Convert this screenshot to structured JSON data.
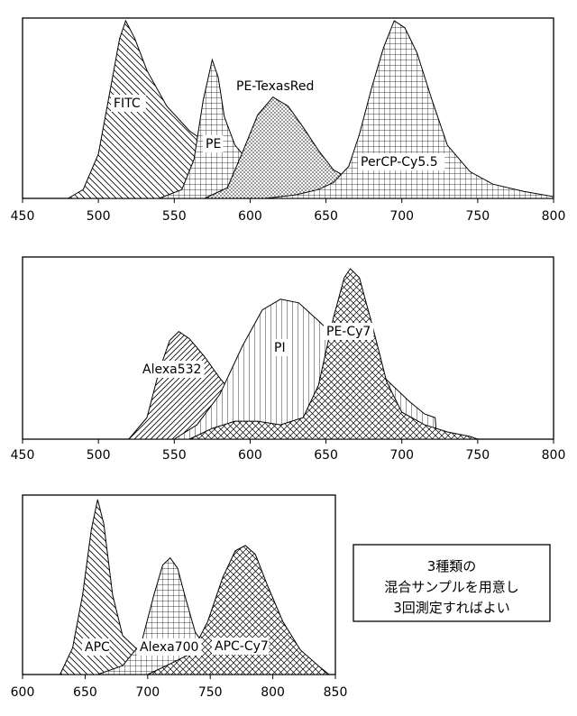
{
  "chart_data": [
    {
      "type": "area",
      "x_ticks": [
        450,
        500,
        550,
        600,
        650,
        700,
        750,
        800
      ],
      "xlim": [
        450,
        800
      ],
      "series": [
        {
          "name": "FITC",
          "peak_x": 518,
          "pattern": "hatch-diag-down",
          "points": [
            [
              480,
              0
            ],
            [
              490,
              0.05
            ],
            [
              500,
              0.25
            ],
            [
              508,
              0.62
            ],
            [
              514,
              0.9
            ],
            [
              518,
              1.0
            ],
            [
              524,
              0.9
            ],
            [
              532,
              0.72
            ],
            [
              545,
              0.52
            ],
            [
              560,
              0.38
            ],
            [
              580,
              0.26
            ],
            [
              600,
              0.17
            ],
            [
              620,
              0.11
            ],
            [
              640,
              0.07
            ],
            [
              660,
              0.04
            ],
            [
              690,
              0.015
            ],
            [
              720,
              0
            ]
          ]
        },
        {
          "name": "PE",
          "peak_x": 575,
          "pattern": "grid",
          "points": [
            [
              540,
              0
            ],
            [
              555,
              0.05
            ],
            [
              563,
              0.22
            ],
            [
              569,
              0.55
            ],
            [
              575,
              0.78
            ],
            [
              579,
              0.68
            ],
            [
              583,
              0.46
            ],
            [
              590,
              0.3
            ],
            [
              600,
              0.2
            ],
            [
              615,
              0.12
            ],
            [
              630,
              0.08
            ],
            [
              650,
              0.05
            ],
            [
              675,
              0.025
            ],
            [
              700,
              0.01
            ],
            [
              720,
              0
            ]
          ]
        },
        {
          "name": "PE-TexasRed",
          "peak_x": 615,
          "pattern": "dots",
          "points": [
            [
              570,
              0
            ],
            [
              585,
              0.06
            ],
            [
              595,
              0.26
            ],
            [
              605,
              0.47
            ],
            [
              615,
              0.57
            ],
            [
              625,
              0.52
            ],
            [
              635,
              0.4
            ],
            [
              645,
              0.27
            ],
            [
              655,
              0.16
            ],
            [
              670,
              0.09
            ],
            [
              690,
              0.05
            ],
            [
              710,
              0.02
            ],
            [
              740,
              0
            ]
          ]
        },
        {
          "name": "PerCP-Cy5.5",
          "peak_x": 695,
          "pattern": "grid",
          "points": [
            [
              610,
              0
            ],
            [
              630,
              0.02
            ],
            [
              645,
              0.05
            ],
            [
              655,
              0.09
            ],
            [
              665,
              0.18
            ],
            [
              672,
              0.36
            ],
            [
              680,
              0.62
            ],
            [
              688,
              0.85
            ],
            [
              695,
              1.0
            ],
            [
              702,
              0.96
            ],
            [
              710,
              0.82
            ],
            [
              720,
              0.55
            ],
            [
              730,
              0.3
            ],
            [
              745,
              0.15
            ],
            [
              760,
              0.08
            ],
            [
              780,
              0.04
            ],
            [
              800,
              0.01
            ]
          ]
        }
      ]
    },
    {
      "type": "area",
      "x_ticks": [
        450,
        500,
        550,
        600,
        650,
        700,
        750,
        800
      ],
      "xlim": [
        450,
        800
      ],
      "series": [
        {
          "name": "Alexa532",
          "peak_x": 553,
          "pattern": "hatch-diag-up",
          "points": [
            [
              520,
              0
            ],
            [
              532,
              0.12
            ],
            [
              540,
              0.38
            ],
            [
              547,
              0.55
            ],
            [
              553,
              0.6
            ],
            [
              560,
              0.56
            ],
            [
              570,
              0.46
            ],
            [
              580,
              0.34
            ],
            [
              592,
              0.22
            ],
            [
              605,
              0.12
            ],
            [
              620,
              0.05
            ],
            [
              640,
              0
            ]
          ]
        },
        {
          "name": "PI",
          "peak_x": 620,
          "pattern": "vertical",
          "points": [
            [
              550,
              0
            ],
            [
              565,
              0.08
            ],
            [
              580,
              0.25
            ],
            [
              595,
              0.52
            ],
            [
              608,
              0.72
            ],
            [
              620,
              0.78
            ],
            [
              632,
              0.76
            ],
            [
              645,
              0.66
            ],
            [
              660,
              0.54
            ],
            [
              675,
              0.44
            ],
            [
              690,
              0.33
            ],
            [
              705,
              0.21
            ],
            [
              715,
              0.14
            ],
            [
              722,
              0.12
            ],
            [
              723,
              0
            ]
          ]
        },
        {
          "name": "PE-Cy7",
          "peak_x": 666,
          "pattern": "crosshatch",
          "points": [
            [
              560,
              0
            ],
            [
              575,
              0.06
            ],
            [
              590,
              0.1
            ],
            [
              605,
              0.1
            ],
            [
              620,
              0.08
            ],
            [
              635,
              0.12
            ],
            [
              645,
              0.3
            ],
            [
              655,
              0.68
            ],
            [
              662,
              0.9
            ],
            [
              666,
              0.95
            ],
            [
              672,
              0.9
            ],
            [
              680,
              0.65
            ],
            [
              690,
              0.32
            ],
            [
              700,
              0.15
            ],
            [
              715,
              0.08
            ],
            [
              730,
              0.04
            ],
            [
              745,
              0.015
            ],
            [
              750,
              0
            ]
          ]
        }
      ]
    },
    {
      "type": "area",
      "x_ticks": [
        600,
        650,
        700,
        750,
        800,
        850
      ],
      "xlim": [
        600,
        850
      ],
      "series": [
        {
          "name": "APC",
          "peak_x": 660,
          "pattern": "hatch-diag-down",
          "points": [
            [
              630,
              0
            ],
            [
              640,
              0.15
            ],
            [
              648,
              0.45
            ],
            [
              655,
              0.82
            ],
            [
              660,
              0.99
            ],
            [
              665,
              0.85
            ],
            [
              672,
              0.45
            ],
            [
              680,
              0.22
            ],
            [
              695,
              0.12
            ],
            [
              715,
              0.08
            ],
            [
              740,
              0.06
            ],
            [
              770,
              0.04
            ],
            [
              800,
              0.02
            ],
            [
              830,
              0
            ]
          ]
        },
        {
          "name": "Alexa700",
          "peak_x": 718,
          "pattern": "grid",
          "points": [
            [
              660,
              0
            ],
            [
              680,
              0.05
            ],
            [
              695,
              0.18
            ],
            [
              705,
              0.45
            ],
            [
              712,
              0.62
            ],
            [
              718,
              0.66
            ],
            [
              724,
              0.6
            ],
            [
              730,
              0.44
            ],
            [
              738,
              0.24
            ],
            [
              750,
              0.12
            ],
            [
              770,
              0.06
            ],
            [
              800,
              0.02
            ],
            [
              820,
              0
            ]
          ]
        },
        {
          "name": "APC-Cy7",
          "peak_x": 778,
          "pattern": "crosshatch",
          "points": [
            [
              700,
              0
            ],
            [
              715,
              0.05
            ],
            [
              735,
              0.12
            ],
            [
              748,
              0.3
            ],
            [
              760,
              0.55
            ],
            [
              770,
              0.7
            ],
            [
              778,
              0.73
            ],
            [
              786,
              0.68
            ],
            [
              796,
              0.5
            ],
            [
              808,
              0.3
            ],
            [
              822,
              0.14
            ],
            [
              838,
              0.04
            ],
            [
              845,
              0
            ]
          ]
        }
      ]
    }
  ],
  "note": {
    "lines": [
      "3種類の",
      "混合サンプルを用意し",
      "3回測定すればよい"
    ]
  }
}
